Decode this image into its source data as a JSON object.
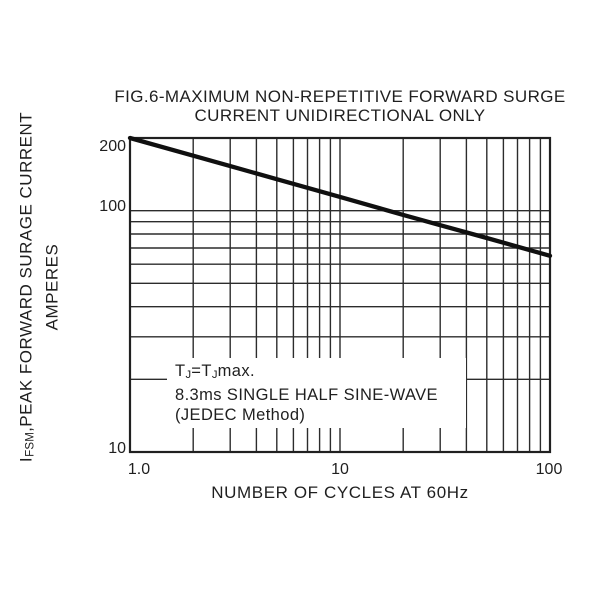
{
  "chart_data": {
    "type": "line",
    "title_line1": "FIG.6-MAXIMUM NON-REPETITIVE FORWARD SURGE",
    "title_line2": "CURRENT UNIDIRECTIONAL ONLY",
    "x_axis": {
      "label": "NUMBER OF CYCLES AT 60Hz",
      "scale": "log",
      "min": 1,
      "max": 100,
      "ticks": [
        {
          "value": 1,
          "label": "1.0"
        },
        {
          "value": 10,
          "label": "10"
        },
        {
          "value": 100,
          "label": "100"
        }
      ],
      "gridlines": [
        2,
        3,
        4,
        5,
        6,
        7,
        8,
        9,
        10,
        20,
        30,
        40,
        50,
        60,
        70,
        80,
        90
      ]
    },
    "y_axis": {
      "label_parts": {
        "prefix": "I",
        "sub": "FSM",
        "rest": ",PEAK FORWARD SURAGE CURRENT",
        "line2": "AMPERES"
      },
      "scale": "log",
      "min": 10,
      "max": 200,
      "ticks": [
        {
          "value": 200,
          "label": "200"
        },
        {
          "value": 100,
          "label": "100"
        },
        {
          "value": 10,
          "label": "10"
        }
      ],
      "gridlines": [
        20,
        30,
        40,
        50,
        60,
        70,
        80,
        90,
        100
      ]
    },
    "series": [
      {
        "name": "maximum-non-repetitive-forward-surge-current",
        "points": [
          [
            1,
            200
          ],
          [
            2,
            169
          ],
          [
            3,
            153
          ],
          [
            5,
            135
          ],
          [
            10,
            114
          ],
          [
            20,
            96
          ],
          [
            30,
            87
          ],
          [
            50,
            77
          ],
          [
            100,
            65
          ]
        ]
      }
    ],
    "annotation": {
      "l1a": "T",
      "l1b": "J",
      "l1c": "=T",
      "l1d": "J",
      "l1e": "max.",
      "line2": "8.3ms SINGLE HALF SINE-WAVE",
      "line3": "(JEDEC Method)"
    },
    "legend": "none",
    "grid": "on",
    "colors": {
      "ink": "#1f1f1f",
      "grid": "#2c2c2c",
      "frame": "#202020",
      "curve": "#101010",
      "background": "#ffffff"
    }
  }
}
